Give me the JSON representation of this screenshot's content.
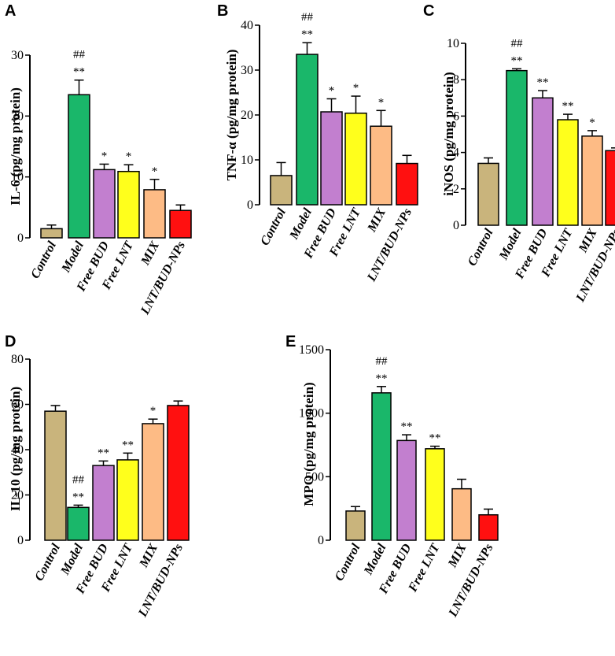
{
  "colors": {
    "Control": "#c9b47c",
    "Model": "#1ab76a",
    "Free BUD": "#c27fcf",
    "Free LNT": "#ffff1c",
    "MIX": "#fdbb85",
    "LNT/BUD-NPs": "#ff1010"
  },
  "chart_data": [
    {
      "id": "A",
      "panel_label": "A",
      "type": "bar",
      "categories": [
        "Control",
        "Model",
        "Free BUD",
        "Free LNT",
        "MIX",
        "LNT/BUD-NPs"
      ],
      "values": [
        1.5,
        23.5,
        11.2,
        10.9,
        7.9,
        4.5
      ],
      "errors": [
        0.6,
        2.4,
        0.9,
        1.1,
        1.7,
        0.9
      ],
      "annotations": [
        [
          "",
          ""
        ],
        [
          "##",
          "**"
        ],
        [
          "",
          "*"
        ],
        [
          "",
          "*"
        ],
        [
          "",
          "*"
        ],
        [
          "",
          ""
        ]
      ],
      "ylabel": "IL-6 (pg/mg protein)",
      "ylim": [
        0,
        30
      ],
      "yticks": [
        0,
        10,
        20,
        30
      ]
    },
    {
      "id": "B",
      "panel_label": "B",
      "type": "bar",
      "categories": [
        "Control",
        "Model",
        "Free BUD",
        "Free LNT",
        "MIX",
        "LNT/BUD-NPs"
      ],
      "values": [
        6.5,
        33.5,
        20.7,
        20.4,
        17.5,
        9.2
      ],
      "errors": [
        2.9,
        2.6,
        2.9,
        3.8,
        3.5,
        1.8
      ],
      "annotations": [
        [
          "",
          ""
        ],
        [
          "##",
          "**"
        ],
        [
          "",
          "*"
        ],
        [
          "",
          "*"
        ],
        [
          "",
          "*"
        ],
        [
          "",
          ""
        ]
      ],
      "ylabel": "TNF-α (pg/mg protein)",
      "ylim": [
        0,
        40
      ],
      "yticks": [
        0,
        10,
        20,
        30,
        40
      ]
    },
    {
      "id": "C",
      "panel_label": "C",
      "type": "bar",
      "categories": [
        "Control",
        "Model",
        "Free BUD",
        "Free LNT",
        "MIX",
        "LNT/BUD-NPs"
      ],
      "values": [
        3.4,
        8.5,
        7.0,
        5.8,
        4.9,
        4.1
      ],
      "errors": [
        0.3,
        0.1,
        0.4,
        0.3,
        0.3,
        0.15
      ],
      "annotations": [
        [
          "",
          ""
        ],
        [
          "##",
          "**"
        ],
        [
          "",
          "**"
        ],
        [
          "",
          "**"
        ],
        [
          "",
          "*"
        ],
        [
          "",
          ""
        ]
      ],
      "ylabel": "iNOS (pg/mg protein)",
      "ylim": [
        0,
        10
      ],
      "yticks": [
        0,
        2,
        4,
        6,
        8,
        10
      ]
    },
    {
      "id": "D",
      "panel_label": "D",
      "type": "bar",
      "categories": [
        "Control",
        "Model",
        "Free BUD",
        "Free LNT",
        "MIX",
        "LNT/BUD-NPs"
      ],
      "values": [
        57,
        14.5,
        33,
        35.5,
        51.5,
        59.5
      ],
      "errors": [
        2.5,
        1.0,
        2.0,
        3.0,
        2.0,
        2.0
      ],
      "annotations": [
        [
          "",
          ""
        ],
        [
          "##",
          "**"
        ],
        [
          "",
          "**"
        ],
        [
          "",
          "**"
        ],
        [
          "",
          "*"
        ],
        [
          "",
          ""
        ]
      ],
      "ylabel": "IL-10 (pg/mg protein)",
      "ylim": [
        0,
        80
      ],
      "yticks": [
        0,
        20,
        40,
        60,
        80
      ]
    },
    {
      "id": "E",
      "panel_label": "E",
      "type": "bar",
      "categories": [
        "Control",
        "Model",
        "Free BUD",
        "Free LNT",
        "MIX",
        "LNT/BUD-NPs"
      ],
      "values": [
        230,
        1160,
        785,
        720,
        405,
        200
      ],
      "errors": [
        35,
        50,
        45,
        20,
        75,
        45
      ],
      "annotations": [
        [
          "",
          ""
        ],
        [
          "##",
          "**"
        ],
        [
          "",
          "**"
        ],
        [
          "",
          "**"
        ],
        [
          "",
          ""
        ],
        [
          "",
          ""
        ]
      ],
      "ylabel": "MPO (pg/mg protein)",
      "ylim": [
        0,
        1500
      ],
      "yticks": [
        0,
        500,
        1000,
        1500
      ]
    }
  ]
}
